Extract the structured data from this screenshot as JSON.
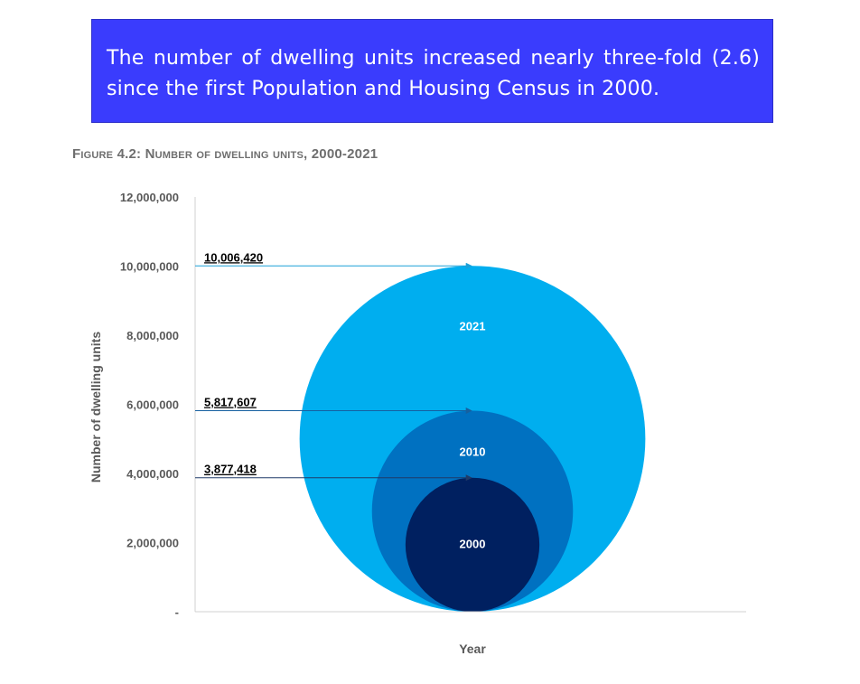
{
  "callout": {
    "text": "The number of dwelling units increased nearly three-fold (2.6) since the first Population and Housing Census in 2000.",
    "background_color": "#3a3cfd",
    "text_color": "#ffffff"
  },
  "figure": {
    "label_prefix": "Figure",
    "label_number": "4.2:",
    "title": "Number of dwelling units,",
    "range": "2000-2021"
  },
  "chart_data": {
    "type": "bubble",
    "title": "Number of dwelling units, 2000-2021",
    "xlabel": "Year",
    "ylabel": "Number of dwelling units",
    "ylim": [
      0,
      12000000
    ],
    "yticks": [
      0,
      2000000,
      4000000,
      6000000,
      8000000,
      10000000,
      12000000
    ],
    "ytick_labels": [
      "-",
      "2,000,000",
      "4,000,000",
      "6,000,000",
      "8,000,000",
      "10,000,000",
      "12,000,000"
    ],
    "grid": false,
    "series": [
      {
        "year": "2021",
        "value": 10006420,
        "value_label": "10,006,420",
        "color": "#00aeef",
        "arrow_color": "#1ca0d8"
      },
      {
        "year": "2010",
        "value": 5817607,
        "value_label": "5,817,607",
        "color": "#0071c1",
        "arrow_color": "#1660a0"
      },
      {
        "year": "2000",
        "value": 3877418,
        "value_label": "3,877,418",
        "color": "#002060",
        "arrow_color": "#1f3a68"
      }
    ]
  }
}
